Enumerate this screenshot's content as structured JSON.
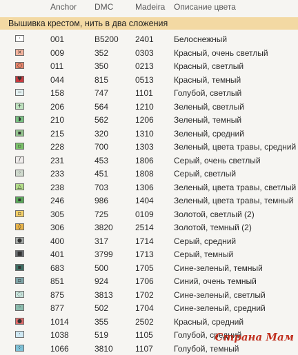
{
  "header": {
    "anchor": "Anchor",
    "dmc": "DMC",
    "madeira": "Madeira",
    "description": "Описание цвета"
  },
  "band_title": "Вышивка крестом, нить в два сложения",
  "rows": [
    {
      "anchor": "001",
      "dmc": "B5200",
      "madeira": "2401",
      "desc": "Белоснежный",
      "color": "#ffffff",
      "glyph": "·"
    },
    {
      "anchor": "009",
      "dmc": "352",
      "madeira": "0303",
      "desc": "Красный, очень светлый",
      "color": "#f4b49e",
      "glyph": "×"
    },
    {
      "anchor": "011",
      "dmc": "350",
      "madeira": "0213",
      "desc": "Красный, светлый",
      "color": "#e8856a",
      "glyph": "○"
    },
    {
      "anchor": "044",
      "dmc": "815",
      "madeira": "0513",
      "desc": "Красный, темный",
      "color": "#c83a3f",
      "glyph": "♥"
    },
    {
      "anchor": "158",
      "dmc": "747",
      "madeira": "1101",
      "desc": "Голубой, светлый",
      "color": "#e4f1f2",
      "glyph": "−"
    },
    {
      "anchor": "206",
      "dmc": "564",
      "madeira": "1210",
      "desc": "Зеленый, светлый",
      "color": "#bfe3c0",
      "glyph": "+"
    },
    {
      "anchor": "210",
      "dmc": "562",
      "madeira": "1206",
      "desc": "Зеленый, темный",
      "color": "#79c182",
      "glyph": "◗"
    },
    {
      "anchor": "215",
      "dmc": "320",
      "madeira": "1310",
      "desc": "Зеленый, средний",
      "color": "#94c48f",
      "glyph": "▪"
    },
    {
      "anchor": "228",
      "dmc": "700",
      "madeira": "1303",
      "desc": "Зеленый, цвета травы, средний",
      "color": "#7ac26a",
      "glyph": "▫"
    },
    {
      "anchor": "231",
      "dmc": "453",
      "madeira": "1806",
      "desc": "Серый, очень светлый",
      "color": "#efeceb",
      "glyph": "/"
    },
    {
      "anchor": "233",
      "dmc": "451",
      "madeira": "1808",
      "desc": "Серый, светлый",
      "color": "#cfd9cd",
      "glyph": "◦"
    },
    {
      "anchor": "238",
      "dmc": "703",
      "madeira": "1306",
      "desc": "Зеленый, цвета травы, светлый",
      "color": "#b4de8a",
      "glyph": "△"
    },
    {
      "anchor": "246",
      "dmc": "986",
      "madeira": "1404",
      "desc": "Зеленый, цвета травы, темный",
      "color": "#5aa85a",
      "glyph": "▪"
    },
    {
      "anchor": "305",
      "dmc": "725",
      "madeira": "0109",
      "desc": "Золотой, светлый (2)",
      "color": "#f4d06a",
      "glyph": "▫"
    },
    {
      "anchor": "306",
      "dmc": "3820",
      "madeira": "2514",
      "desc": "Золотой, темный (2)",
      "color": "#e8b44a",
      "glyph": "◊"
    },
    {
      "anchor": "400",
      "dmc": "317",
      "madeira": "1714",
      "desc": "Серый, средний",
      "color": "#a9aeab",
      "glyph": "●"
    },
    {
      "anchor": "401",
      "dmc": "3799",
      "madeira": "1713",
      "desc": "Серый, темный",
      "color": "#6b6f72",
      "glyph": "■"
    },
    {
      "anchor": "683",
      "dmc": "500",
      "madeira": "1705",
      "desc": "Сине-зеленый, темный",
      "color": "#3f6f64",
      "glyph": "▪"
    },
    {
      "anchor": "851",
      "dmc": "924",
      "madeira": "1706",
      "desc": "Синий, очень темный",
      "color": "#7fa5a8",
      "glyph": "▫"
    },
    {
      "anchor": "875",
      "dmc": "3813",
      "madeira": "1702",
      "desc": "Сине-зеленый, светлый",
      "color": "#c8e4dc",
      "glyph": "◌"
    },
    {
      "anchor": "877",
      "dmc": "502",
      "madeira": "1704",
      "desc": "Сине-зеленый, средний",
      "color": "#8cbcae",
      "glyph": "◦"
    },
    {
      "anchor": "1014",
      "dmc": "355",
      "madeira": "2502",
      "desc": "Красный, средний",
      "color": "#e06a6a",
      "glyph": "●"
    },
    {
      "anchor": "1038",
      "dmc": "519",
      "madeira": "1105",
      "desc": "Голубой, средний",
      "color": "#cfe8f3",
      "glyph": "·"
    },
    {
      "anchor": "1066",
      "dmc": "3810",
      "madeira": "1107",
      "desc": "Голубой, темный",
      "color": "#7ec2d8",
      "glyph": "⁘"
    }
  ],
  "watermark": "Страна Мам"
}
